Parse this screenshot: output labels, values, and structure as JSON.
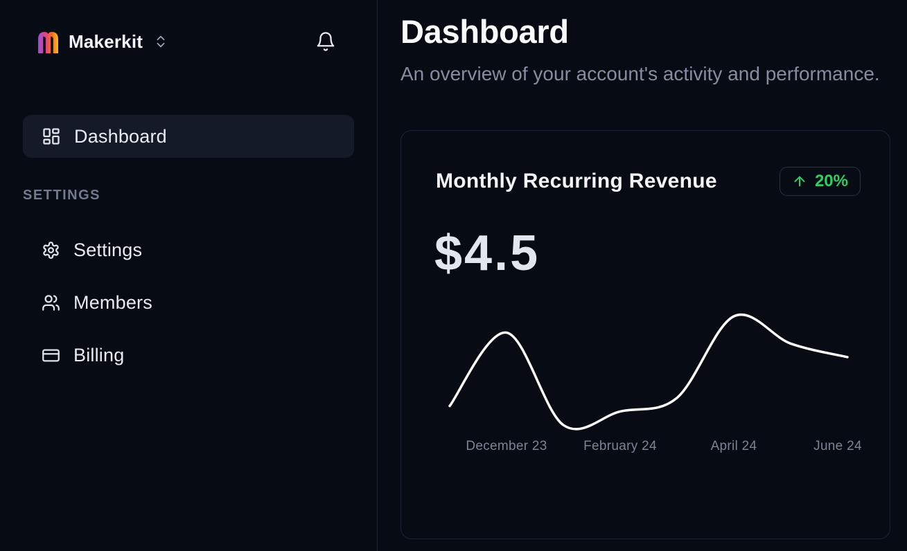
{
  "sidebar": {
    "workspace_name": "Makerkit",
    "logo_letter": "m",
    "primary_nav": [
      {
        "label": "Dashboard",
        "active": true
      }
    ],
    "section_label": "SETTINGS",
    "settings_nav": [
      {
        "label": "Settings"
      },
      {
        "label": "Members"
      },
      {
        "label": "Billing"
      }
    ]
  },
  "header": {
    "title": "Dashboard",
    "subtitle": "An overview of your account's activity and performance."
  },
  "mrr_card": {
    "title": "Monthly Recurring Revenue",
    "trend": {
      "direction": "up",
      "value": "20%"
    },
    "amount": "$4.5"
  },
  "chart_data": {
    "type": "line",
    "title": "Monthly Recurring Revenue",
    "values": [
      2.7,
      5.4,
      2.0,
      2.5,
      3.0,
      6.0,
      5.0,
      4.5
    ],
    "tick_labels": [
      "December 23",
      "February 24",
      "April 24",
      "June 24"
    ],
    "tick_indices": [
      1,
      3,
      5,
      7
    ],
    "xlabel": "",
    "ylabel": "",
    "ylim": [
      2.0,
      6.0
    ],
    "grid": false,
    "legend": false,
    "y_axis_visible": false,
    "line_color": "#ffffff",
    "tick_color": "#7c8494"
  },
  "colors": {
    "background": "#070b14",
    "card_border": "#1c2433",
    "positive_green": "#2fce62",
    "muted_text": "#858d9e"
  }
}
